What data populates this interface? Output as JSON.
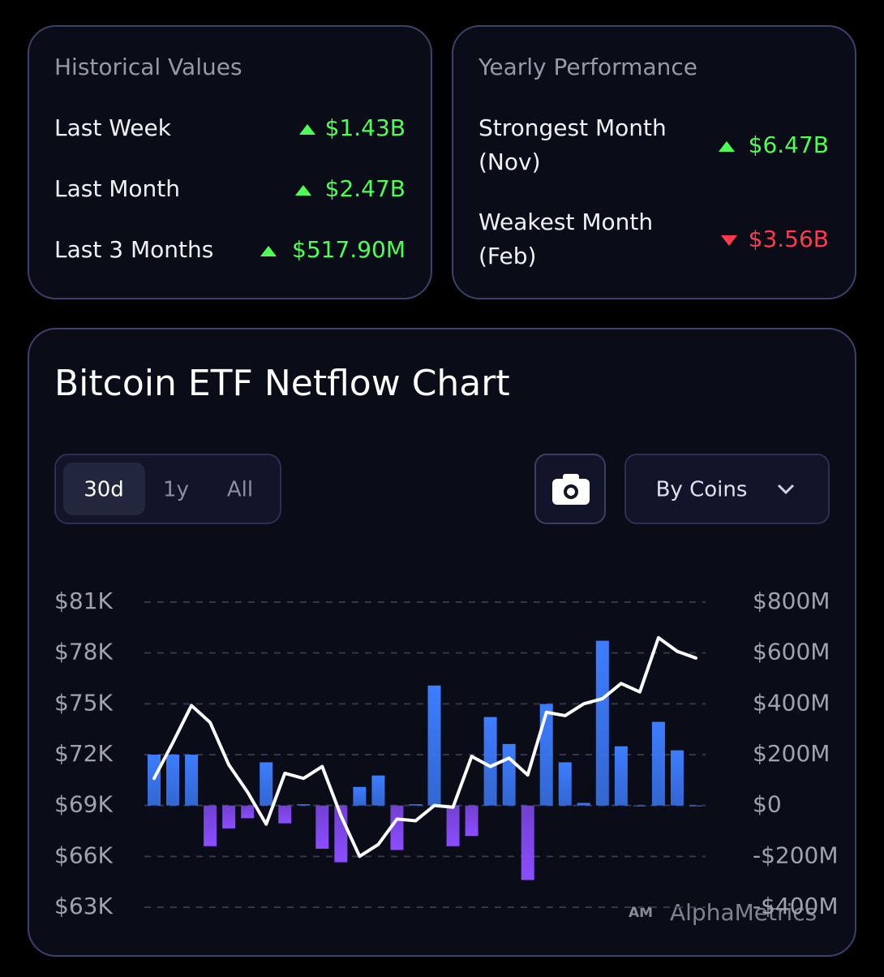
{
  "historical": {
    "title": "Historical Values",
    "rows": [
      {
        "label": "Last Week",
        "value": "$1.43B"
      },
      {
        "label": "Last Month",
        "value": "$2.47B"
      },
      {
        "label": "Last 3 Months",
        "value": "$517.90M"
      }
    ]
  },
  "yearly": {
    "title": "Yearly Performance",
    "rows": [
      {
        "label": "Strongest Month",
        "period": "(Nov)",
        "value": "$6.47B"
      },
      {
        "label": "Weakest Month",
        "period": "(Feb)",
        "value": "$3.56B"
      }
    ]
  },
  "chart_panel": {
    "title": "Bitcoin ETF Netflow Chart",
    "ranges": [
      "30d",
      "1y",
      "All"
    ],
    "dropdown": "By Coins",
    "watermark_logo": "AM",
    "watermark": "AlphaMetrics"
  },
  "chart_data": {
    "type": "bar-line",
    "series": [
      {
        "type": "bar",
        "axis": "y2",
        "color": "#3d7dff",
        "negative_color": "#8b4dff",
        "values": [
          200,
          200,
          200,
          -160,
          -90,
          -50,
          170,
          -70,
          5,
          -170,
          -223,
          73,
          118,
          -175,
          5,
          472,
          -160,
          -120,
          348,
          242,
          -293,
          399,
          170,
          10,
          648,
          233,
          0,
          329,
          217,
          0
        ]
      },
      {
        "type": "line",
        "axis": "y",
        "color": "#ffffff",
        "values": [
          70.6,
          72.7,
          74.9,
          73.9,
          71.4,
          69.8,
          67.9,
          70.9,
          70.6,
          71.3,
          68.4,
          66.0,
          66.7,
          68.2,
          68.1,
          69.0,
          68.9,
          71.9,
          71.3,
          71.8,
          70.8,
          74.5,
          74.3,
          75.0,
          75.3,
          76.2,
          75.7,
          78.9,
          78.1,
          77.7
        ]
      }
    ],
    "ylim": [
      63,
      81
    ],
    "yticks": [
      {
        "value": 63,
        "label": "$63K"
      },
      {
        "value": 66,
        "label": "$66K"
      },
      {
        "value": 69,
        "label": "$69K"
      },
      {
        "value": 72,
        "label": "$72K"
      },
      {
        "value": 75,
        "label": "$75K"
      },
      {
        "value": 78,
        "label": "$78K"
      },
      {
        "value": 81,
        "label": "$81K"
      }
    ],
    "y2lim": [
      -400,
      800
    ],
    "y2ticks": [
      {
        "value": -400,
        "label": "-$400M"
      },
      {
        "value": -200,
        "label": "-$200M"
      },
      {
        "value": 0,
        "label": "$0"
      },
      {
        "value": 200,
        "label": "$200M"
      },
      {
        "value": 400,
        "label": "$400M"
      },
      {
        "value": 600,
        "label": "$600M"
      },
      {
        "value": 800,
        "label": "$800M"
      }
    ],
    "grid": true
  }
}
